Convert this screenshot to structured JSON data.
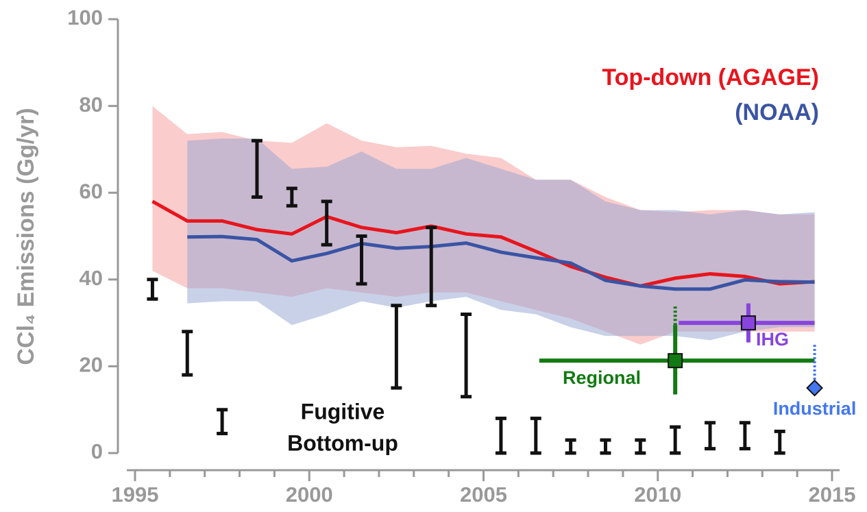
{
  "chart_data": {
    "type": "line",
    "y_label": "CCl₄ Emissions (Gg/yr)",
    "xlim": [
      1994.5,
      1995.5
    ],
    "ylim": [
      0,
      100
    ],
    "yticks": [
      0,
      20,
      40,
      60,
      80,
      100
    ],
    "xticks": [
      1995,
      2000,
      2005,
      2010,
      2015
    ],
    "xminorticks": [
      1996,
      1997,
      1998,
      1999,
      2001,
      2002,
      2003,
      2004,
      2006,
      2007,
      2008,
      2009,
      2011,
      2012,
      2013,
      2014
    ],
    "x": [
      1995.5,
      1996.5,
      1997.5,
      1998.5,
      1999.5,
      2000.5,
      2001.5,
      2002.5,
      2003.5,
      2004.5,
      2005.5,
      2006.5,
      2007.5,
      2008.5,
      2009.5,
      2010.5,
      2011.5,
      2012.5,
      2013.5,
      2014.5
    ],
    "series": [
      {
        "name": "Top-down (AGAGE)",
        "color": "#e8151d",
        "band_color": "#f59a9a",
        "values": [
          58,
          53.5,
          53.5,
          51.5,
          50.5,
          54.5,
          52,
          50.8,
          52.3,
          50.5,
          49.8,
          46.5,
          43,
          40.5,
          38.5,
          40.3,
          41.3,
          40.7,
          39,
          39.5
        ],
        "upper": [
          80,
          73.5,
          74,
          72,
          71.5,
          76,
          72,
          70.5,
          70.8,
          69,
          68,
          63,
          63,
          59,
          56,
          55.5,
          56,
          56,
          55,
          55
        ],
        "lower": [
          42,
          38,
          38,
          37,
          36,
          38,
          37,
          36,
          37,
          37,
          35,
          33,
          31,
          28,
          25,
          28,
          28,
          28,
          28,
          28
        ]
      },
      {
        "name": "(NOAA)",
        "color": "#3a54a4",
        "band_color": "#94a3d2",
        "values": [
          null,
          49.8,
          49.9,
          49.2,
          44.3,
          46,
          48.3,
          47.2,
          47.6,
          48.4,
          46.3,
          45,
          43.8,
          39.8,
          38.5,
          37.8,
          37.8,
          39.9,
          39.5,
          39.4
        ],
        "upper": [
          null,
          72,
          72.5,
          72.5,
          65.5,
          66,
          69.5,
          65.5,
          65.5,
          68,
          65.5,
          63,
          63,
          58,
          56,
          56,
          55,
          56,
          55,
          55.5
        ],
        "lower": [
          null,
          34.5,
          35,
          35,
          29.5,
          32,
          35,
          33.5,
          35,
          36,
          33,
          32,
          29,
          27,
          27,
          27,
          26,
          28,
          29,
          29
        ]
      }
    ],
    "bottom_up": {
      "label_lines": [
        "Fugitive",
        "Bottom-up"
      ],
      "color": "#111",
      "x": [
        1995.5,
        1996.5,
        1997.5,
        1998.5,
        1999.5,
        2000.5,
        2001.5,
        2002.5,
        2003.5,
        2004.5,
        2005.5,
        2006.5,
        2007.5,
        2008.5,
        2009.5,
        2010.5,
        2011.5,
        2012.5,
        2013.5
      ],
      "low": [
        35.5,
        18,
        4.5,
        59,
        57,
        48,
        39,
        15,
        34,
        13,
        0,
        0,
        0,
        0,
        0,
        0,
        1,
        1,
        0
      ],
      "high": [
        40,
        28,
        10,
        72,
        61,
        58,
        50,
        34,
        52,
        32,
        8,
        8,
        3,
        3,
        3,
        6,
        7,
        7,
        5
      ]
    },
    "regional": {
      "name": "Regional",
      "color": "#127a12",
      "x": 2010.5,
      "y": 21.3,
      "x_low": 2006.6,
      "x_high": 2014.5,
      "y_low": 13.5,
      "y_high": 29.5,
      "y_high_dotted": 34
    },
    "ihg": {
      "name": "IHG",
      "color": "#8844dd",
      "x": 2012.6,
      "y": 30,
      "x_low": 2010.6,
      "x_high": 2014.5,
      "y_low": 25.5,
      "y_high": 34.5
    },
    "industrial": {
      "name": "Industrial",
      "color": "#4477ee",
      "x": 2014.5,
      "y": 15,
      "y_high_dotted": 25
    }
  }
}
